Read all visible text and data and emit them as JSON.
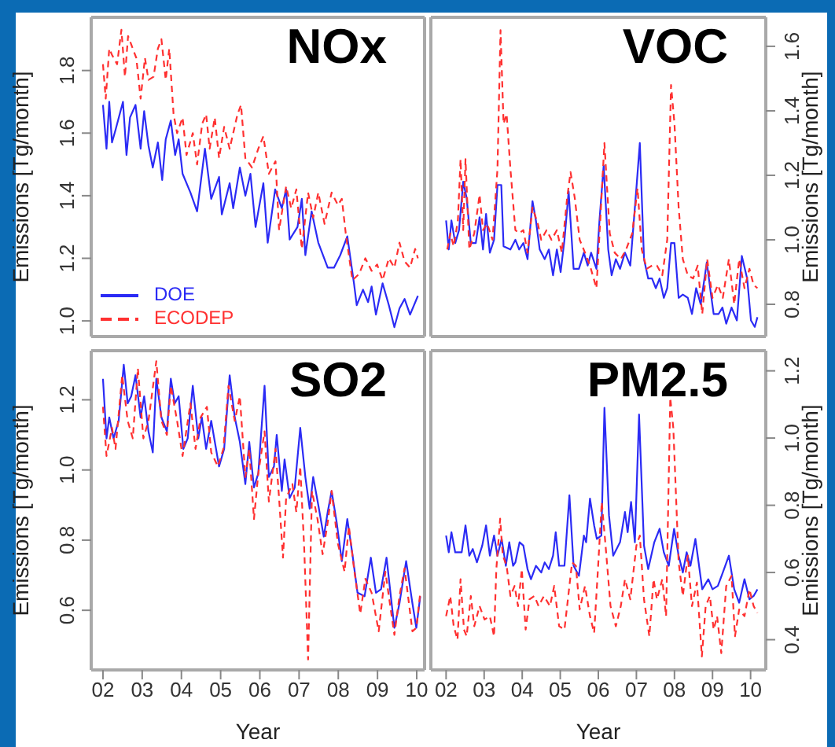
{
  "chart_data": [
    {
      "type": "line",
      "title": "NOx",
      "ylabel": "Emissions [Tg/month]",
      "xlim": [
        2001.7,
        2010.2
      ],
      "ylim": [
        0.95,
        1.97
      ],
      "yticks": [
        {
          "value": 1,
          "label": "1.0"
        },
        {
          "value": 1.2,
          "label": "1.2"
        },
        {
          "value": 1.4,
          "label": "1.4"
        },
        {
          "value": 1.6,
          "label": "1.6"
        },
        {
          "value": 1.8,
          "label": "1.8"
        }
      ],
      "tick_labels": "y",
      "legend": "bottom left",
      "series": [
        {
          "name": "DOE",
          "color": "#2b2bf5",
          "line_style": "solid",
          "x": [
            2002.0,
            2002.09,
            2002.16,
            2002.23,
            2002.32,
            2002.51,
            2002.6,
            2002.69,
            2002.83,
            2002.96,
            2003.05,
            2003.16,
            2003.27,
            2003.4,
            2003.51,
            2003.6,
            2003.73,
            2003.84,
            2003.93,
            2004.03,
            2004.23,
            2004.4,
            2004.6,
            2004.76,
            2004.96,
            2005.03,
            2005.23,
            2005.32,
            2005.49,
            2005.63,
            2005.76,
            2005.89,
            2006.09,
            2006.2,
            2006.39,
            2006.56,
            2006.67,
            2006.76,
            2006.96,
            2007.07,
            2007.16,
            2007.32,
            2007.49,
            2007.73,
            2007.89,
            2008.05,
            2008.23,
            2008.4,
            2008.47,
            2008.63,
            2008.76,
            2008.85,
            2008.96,
            2009.13,
            2009.29,
            2009.43,
            2009.56,
            2009.69,
            2009.83,
            2010.03
          ],
          "values": [
            1.69,
            1.55,
            1.7,
            1.57,
            1.61,
            1.7,
            1.53,
            1.65,
            1.69,
            1.55,
            1.67,
            1.56,
            1.49,
            1.57,
            1.45,
            1.58,
            1.64,
            1.53,
            1.58,
            1.47,
            1.41,
            1.35,
            1.55,
            1.39,
            1.46,
            1.34,
            1.44,
            1.36,
            1.49,
            1.4,
            1.47,
            1.3,
            1.44,
            1.25,
            1.42,
            1.36,
            1.42,
            1.26,
            1.3,
            1.39,
            1.21,
            1.35,
            1.25,
            1.17,
            1.17,
            1.21,
            1.27,
            1.12,
            1.05,
            1.1,
            1.06,
            1.11,
            1.02,
            1.12,
            1.05,
            0.98,
            1.04,
            1.07,
            1.02,
            1.08
          ]
        },
        {
          "name": "ECODEP",
          "color": "#ff3030",
          "line_style": "dashed",
          "x": [
            2002.0,
            2002.07,
            2002.16,
            2002.23,
            2002.36,
            2002.47,
            2002.56,
            2002.64,
            2002.76,
            2002.85,
            2002.96,
            2003.07,
            2003.16,
            2003.29,
            2003.4,
            2003.49,
            2003.6,
            2003.69,
            2003.8,
            2003.89,
            2004.03,
            2004.13,
            2004.29,
            2004.4,
            2004.53,
            2004.63,
            2004.72,
            2004.85,
            2004.96,
            2005.09,
            2005.23,
            2005.43,
            2005.52,
            2005.63,
            2005.8,
            2005.96,
            2006.09,
            2006.23,
            2006.4,
            2006.49,
            2006.67,
            2006.8,
            2006.93,
            2007.07,
            2007.23,
            2007.36,
            2007.49,
            2007.65,
            2007.83,
            2007.99,
            2008.09,
            2008.19,
            2008.36,
            2008.53,
            2008.69,
            2008.85,
            2008.99,
            2009.13,
            2009.29,
            2009.43,
            2009.56,
            2009.69,
            2009.83,
            2009.96,
            2010.03
          ],
          "values": [
            1.82,
            1.71,
            1.87,
            1.85,
            1.82,
            1.93,
            1.78,
            1.91,
            1.87,
            1.84,
            1.71,
            1.84,
            1.77,
            1.78,
            1.87,
            1.9,
            1.77,
            1.87,
            1.66,
            1.6,
            1.65,
            1.53,
            1.6,
            1.5,
            1.63,
            1.66,
            1.55,
            1.65,
            1.52,
            1.62,
            1.55,
            1.66,
            1.69,
            1.52,
            1.49,
            1.55,
            1.59,
            1.47,
            1.51,
            1.29,
            1.43,
            1.36,
            1.42,
            1.23,
            1.41,
            1.33,
            1.41,
            1.31,
            1.41,
            1.37,
            1.39,
            1.28,
            1.13,
            1.15,
            1.2,
            1.16,
            1.18,
            1.13,
            1.2,
            1.17,
            1.25,
            1.19,
            1.17,
            1.23,
            1.2
          ]
        }
      ]
    },
    {
      "type": "line",
      "title": "VOC",
      "y2label": "Emissions [Tg/month]",
      "xlim": [
        2001.6,
        2010.4
      ],
      "y2lim": [
        0.7,
        1.69
      ],
      "y2ticks": [
        {
          "value": 0.8,
          "label": "0.8"
        },
        {
          "value": 1,
          "label": "1.0"
        },
        {
          "value": 1.2,
          "label": "1.2"
        },
        {
          "value": 1.4,
          "label": "1.4"
        },
        {
          "value": 1.6,
          "label": "1.6"
        }
      ],
      "tick_labels": "y",
      "series": [
        {
          "color": "#2b2bf5",
          "line_style": "solid",
          "axis": "y2",
          "x": [
            2002.0,
            2002.07,
            2002.14,
            2002.24,
            2002.34,
            2002.45,
            2002.54,
            2002.65,
            2002.78,
            2002.88,
            2002.97,
            2003.05,
            2003.15,
            2003.26,
            2003.35,
            2003.45,
            2003.51,
            2003.69,
            2003.82,
            2003.92,
            2004.03,
            2004.14,
            2004.27,
            2004.36,
            2004.46,
            2004.59,
            2004.7,
            2004.81,
            2004.91,
            2005.01,
            2005.11,
            2005.22,
            2005.35,
            2005.49,
            2005.62,
            2005.72,
            2005.81,
            2005.95,
            2006.03,
            2006.14,
            2006.26,
            2006.35,
            2006.46,
            2006.57,
            2006.7,
            2006.84,
            2007.0,
            2007.09,
            2007.2,
            2007.31,
            2007.41,
            2007.51,
            2007.61,
            2007.72,
            2007.81,
            2007.91,
            2008.0,
            2008.11,
            2008.22,
            2008.35,
            2008.46,
            2008.57,
            2008.69,
            2008.85,
            2008.96,
            2009.03,
            2009.16,
            2009.26,
            2009.36,
            2009.5,
            2009.64,
            2009.77,
            2009.91,
            2010.01,
            2010.11,
            2010.18
          ],
          "values": [
            1.06,
            0.97,
            1.06,
            0.99,
            1.03,
            1.18,
            1.13,
            0.99,
            0.99,
            1.07,
            0.97,
            1.08,
            0.96,
            1.0,
            1.17,
            1.17,
            0.98,
            0.97,
            1.0,
            0.97,
            0.99,
            0.94,
            1.12,
            1.06,
            0.97,
            0.94,
            0.97,
            0.89,
            0.97,
            0.9,
            1.0,
            1.15,
            0.91,
            0.91,
            0.96,
            0.92,
            0.96,
            0.91,
            1.06,
            1.23,
            0.97,
            0.89,
            0.94,
            0.91,
            0.96,
            0.92,
            1.16,
            1.3,
            0.94,
            0.88,
            0.88,
            0.85,
            0.88,
            0.82,
            0.85,
            0.99,
            0.99,
            0.82,
            0.83,
            0.82,
            0.77,
            0.85,
            0.8,
            0.93,
            0.83,
            0.77,
            0.77,
            0.79,
            0.74,
            0.79,
            0.75,
            0.95,
            0.88,
            0.75,
            0.73,
            0.76
          ]
        },
        {
          "color": "#ff3030",
          "line_style": "dashed",
          "axis": "y2",
          "x": [
            2002.03,
            2002.11,
            2002.2,
            2002.31,
            2002.38,
            2002.45,
            2002.51,
            2002.61,
            2002.74,
            2002.88,
            2002.97,
            2003.08,
            2003.22,
            2003.35,
            2003.43,
            2003.51,
            2003.59,
            2003.69,
            2003.82,
            2003.92,
            2004.03,
            2004.14,
            2004.27,
            2004.41,
            2004.5,
            2004.64,
            2004.77,
            2004.91,
            2005.04,
            2005.18,
            2005.27,
            2005.38,
            2005.51,
            2005.65,
            2005.78,
            2005.95,
            2006.05,
            2006.16,
            2006.3,
            2006.43,
            2006.59,
            2006.73,
            2006.89,
            2007.03,
            2007.14,
            2007.27,
            2007.41,
            2007.54,
            2007.68,
            2007.81,
            2007.91,
            2008.0,
            2008.11,
            2008.22,
            2008.35,
            2008.49,
            2008.61,
            2008.73,
            2008.86,
            2009.0,
            2009.14,
            2009.27,
            2009.43,
            2009.57,
            2009.7,
            2009.84,
            2009.97,
            2010.08,
            2010.18
          ],
          "values": [
            0.97,
            1.02,
            0.98,
            1.06,
            1.25,
            1.03,
            1.25,
            0.97,
            1.02,
            1.14,
            1.03,
            1.05,
            1.0,
            1.22,
            1.65,
            1.36,
            1.39,
            1.22,
            1.03,
            1.02,
            1.03,
            0.96,
            1.1,
            1.05,
            1.0,
            1.03,
            1.0,
            1.03,
            0.96,
            1.13,
            1.21,
            1.13,
            1.0,
            0.96,
            0.92,
            0.85,
            1.06,
            1.3,
            1.02,
            0.96,
            0.94,
            0.97,
            1.02,
            1.16,
            0.97,
            0.91,
            0.92,
            0.92,
            0.89,
            1.0,
            1.48,
            1.36,
            1.1,
            0.94,
            0.89,
            0.88,
            0.92,
            0.77,
            0.94,
            0.82,
            0.86,
            0.82,
            0.94,
            0.8,
            0.94,
            0.85,
            0.91,
            0.86,
            0.85
          ]
        }
      ]
    },
    {
      "type": "line",
      "title": "SO2",
      "xlabel": "Year",
      "ylabel": "Emissions [Tg/month]",
      "xlim": [
        2001.7,
        2010.2
      ],
      "xticks": [
        {
          "value": 2002,
          "label": "02"
        },
        {
          "value": 2003,
          "label": "03"
        },
        {
          "value": 2004,
          "label": "04"
        },
        {
          "value": 2005,
          "label": "05"
        },
        {
          "value": 2006,
          "label": "06"
        },
        {
          "value": 2007,
          "label": "07"
        },
        {
          "value": 2008,
          "label": "08"
        },
        {
          "value": 2009,
          "label": "09"
        },
        {
          "value": 2010,
          "label": "10"
        }
      ],
      "ylim": [
        0.43,
        1.34
      ],
      "yticks": [
        {
          "value": 0.6,
          "label": "0.6"
        },
        {
          "value": 0.8,
          "label": "0.8"
        },
        {
          "value": 1,
          "label": "1.0"
        },
        {
          "value": 1.2,
          "label": "1.2"
        }
      ],
      "series": [
        {
          "color": "#2b2bf5",
          "line_style": "solid",
          "x": [
            2002.0,
            2002.09,
            2002.16,
            2002.27,
            2002.4,
            2002.53,
            2002.63,
            2002.72,
            2002.83,
            2002.96,
            2003.05,
            2003.16,
            2003.27,
            2003.36,
            2003.49,
            2003.63,
            2003.73,
            2003.83,
            2003.93,
            2004.05,
            2004.16,
            2004.29,
            2004.43,
            2004.52,
            2004.63,
            2004.76,
            2004.96,
            2005.09,
            2005.23,
            2005.36,
            2005.49,
            2005.63,
            2005.73,
            2005.85,
            2005.96,
            2006.12,
            2006.23,
            2006.36,
            2006.43,
            2006.56,
            2006.63,
            2006.76,
            2006.89,
            2007.03,
            2007.16,
            2007.27,
            2007.36,
            2007.49,
            2007.63,
            2007.73,
            2007.83,
            2007.96,
            2008.09,
            2008.23,
            2008.36,
            2008.49,
            2008.67,
            2008.83,
            2008.96,
            2009.09,
            2009.23,
            2009.43,
            2009.56,
            2009.73,
            2009.89,
            2009.99,
            2010.09
          ],
          "values": [
            1.26,
            1.09,
            1.15,
            1.09,
            1.14,
            1.3,
            1.19,
            1.21,
            1.27,
            1.15,
            1.21,
            1.11,
            1.05,
            1.26,
            1.15,
            1.11,
            1.26,
            1.19,
            1.21,
            1.06,
            1.09,
            1.24,
            1.09,
            1.15,
            1.06,
            1.14,
            1.01,
            1.06,
            1.27,
            1.15,
            1.08,
            0.96,
            1.08,
            0.95,
            0.99,
            1.24,
            0.98,
            1.01,
            1.1,
            0.94,
            1.03,
            0.92,
            0.95,
            1.12,
            0.98,
            0.89,
            0.98,
            0.9,
            0.81,
            0.88,
            0.94,
            0.85,
            0.74,
            0.86,
            0.76,
            0.65,
            0.64,
            0.75,
            0.65,
            0.66,
            0.75,
            0.55,
            0.62,
            0.74,
            0.62,
            0.55,
            0.64
          ]
        },
        {
          "color": "#ff3030",
          "line_style": "dashed",
          "x": [
            2002.0,
            2002.09,
            2002.23,
            2002.32,
            2002.49,
            2002.63,
            2002.76,
            2002.89,
            2003.03,
            2003.16,
            2003.36,
            2003.49,
            2003.63,
            2003.73,
            2003.89,
            2004.03,
            2004.23,
            2004.36,
            2004.49,
            2004.65,
            2004.76,
            2004.93,
            2005.07,
            2005.2,
            2005.36,
            2005.49,
            2005.63,
            2005.73,
            2005.85,
            2005.96,
            2006.12,
            2006.23,
            2006.4,
            2006.49,
            2006.59,
            2006.67,
            2006.83,
            2006.93,
            2007.03,
            2007.13,
            2007.23,
            2007.33,
            2007.47,
            2007.6,
            2007.73,
            2007.83,
            2007.99,
            2008.16,
            2008.27,
            2008.4,
            2008.56,
            2008.69,
            2008.85,
            2009.03,
            2009.2,
            2009.43,
            2009.56,
            2009.69,
            2009.89,
            2009.99,
            2010.09
          ],
          "values": [
            1.18,
            1.04,
            1.12,
            1.06,
            1.27,
            1.14,
            1.09,
            1.29,
            1.09,
            1.14,
            1.31,
            1.14,
            1.1,
            1.24,
            1.14,
            1.04,
            1.19,
            1.06,
            1.15,
            1.18,
            1.05,
            1.01,
            1.06,
            1.24,
            1.14,
            1.21,
            0.98,
            1.06,
            0.86,
            0.99,
            1.11,
            0.91,
            1.06,
            0.92,
            0.75,
            0.92,
            0.96,
            0.88,
            1.01,
            0.78,
            0.46,
            0.94,
            0.86,
            0.76,
            0.85,
            0.94,
            0.79,
            0.71,
            0.84,
            0.72,
            0.59,
            0.69,
            0.65,
            0.54,
            0.71,
            0.53,
            0.64,
            0.72,
            0.54,
            0.55,
            0.65
          ]
        }
      ]
    },
    {
      "type": "line",
      "title": "PM2.5",
      "xlabel": "Year",
      "y2label": "Emissions [Tg/month]",
      "xlim": [
        2001.6,
        2010.4
      ],
      "xticks": [
        {
          "value": 2002,
          "label": "02"
        },
        {
          "value": 2003,
          "label": "03"
        },
        {
          "value": 2004,
          "label": "04"
        },
        {
          "value": 2005,
          "label": "05"
        },
        {
          "value": 2006,
          "label": "06"
        },
        {
          "value": 2007,
          "label": "07"
        },
        {
          "value": 2008,
          "label": "08"
        },
        {
          "value": 2009,
          "label": "09"
        },
        {
          "value": 2010,
          "label": "10"
        }
      ],
      "y2lim": [
        0.31,
        1.26
      ],
      "y2ticks": [
        {
          "value": 0.4,
          "label": "0.4"
        },
        {
          "value": 0.6,
          "label": "0.6"
        },
        {
          "value": 0.8,
          "label": "0.8"
        },
        {
          "value": 1,
          "label": "1.0"
        },
        {
          "value": 1.2,
          "label": "1.2"
        }
      ],
      "series": [
        {
          "color": "#2b2bf5",
          "line_style": "solid",
          "axis": "y2",
          "x": [
            2002.0,
            2002.07,
            2002.14,
            2002.24,
            2002.41,
            2002.51,
            2002.61,
            2002.7,
            2002.81,
            2002.95,
            2003.05,
            2003.15,
            2003.26,
            2003.35,
            2003.46,
            2003.57,
            2003.66,
            2003.76,
            2003.82,
            2003.93,
            2004.03,
            2004.14,
            2004.23,
            2004.36,
            2004.5,
            2004.59,
            2004.7,
            2004.81,
            2004.88,
            2004.97,
            2005.11,
            2005.24,
            2005.35,
            2005.49,
            2005.62,
            2005.68,
            2005.78,
            2005.89,
            2005.96,
            2006.08,
            2006.16,
            2006.28,
            2006.39,
            2006.57,
            2006.7,
            2006.77,
            2006.86,
            2006.96,
            2007.07,
            2007.2,
            2007.31,
            2007.47,
            2007.61,
            2007.72,
            2007.85,
            2007.99,
            2008.11,
            2008.22,
            2008.32,
            2008.42,
            2008.55,
            2008.73,
            2008.89,
            2009.0,
            2009.14,
            2009.27,
            2009.43,
            2009.57,
            2009.7,
            2009.84,
            2009.97,
            2010.08,
            2010.18
          ],
          "values": [
            0.71,
            0.66,
            0.72,
            0.66,
            0.66,
            0.74,
            0.65,
            0.67,
            0.63,
            0.68,
            0.74,
            0.65,
            0.71,
            0.65,
            0.7,
            0.62,
            0.69,
            0.62,
            0.63,
            0.69,
            0.68,
            0.61,
            0.58,
            0.62,
            0.6,
            0.63,
            0.61,
            0.65,
            0.72,
            0.62,
            0.62,
            0.83,
            0.62,
            0.59,
            0.71,
            0.69,
            0.82,
            0.74,
            0.7,
            0.71,
            1.09,
            0.77,
            0.65,
            0.69,
            0.78,
            0.72,
            0.81,
            0.69,
            1.07,
            0.68,
            0.61,
            0.69,
            0.73,
            0.66,
            0.62,
            0.73,
            0.65,
            0.6,
            0.66,
            0.62,
            0.7,
            0.55,
            0.58,
            0.55,
            0.56,
            0.6,
            0.65,
            0.55,
            0.51,
            0.58,
            0.52,
            0.53,
            0.55
          ]
        },
        {
          "color": "#ff3030",
          "line_style": "dashed",
          "axis": "y2",
          "x": [
            2002.0,
            2002.11,
            2002.2,
            2002.3,
            2002.38,
            2002.47,
            2002.54,
            2002.65,
            2002.74,
            2002.88,
            2003.01,
            2003.15,
            2003.26,
            2003.32,
            2003.42,
            2003.49,
            2003.59,
            2003.69,
            2003.8,
            2003.89,
            2003.99,
            2004.09,
            2004.19,
            2004.32,
            2004.43,
            2004.57,
            2004.73,
            2004.84,
            2004.97,
            2005.11,
            2005.24,
            2005.31,
            2005.41,
            2005.51,
            2005.65,
            2005.78,
            2005.89,
            2005.99,
            2006.09,
            2006.19,
            2006.32,
            2006.46,
            2006.59,
            2006.7,
            2006.84,
            2007.0,
            2007.09,
            2007.2,
            2007.34,
            2007.45,
            2007.54,
            2007.68,
            2007.78,
            2007.89,
            2007.97,
            2008.11,
            2008.22,
            2008.35,
            2008.46,
            2008.59,
            2008.72,
            2008.82,
            2008.93,
            2009.03,
            2009.12,
            2009.23,
            2009.36,
            2009.5,
            2009.59,
            2009.7,
            2009.84,
            2009.97,
            2010.08,
            2010.18
          ],
          "values": [
            0.47,
            0.53,
            0.44,
            0.4,
            0.58,
            0.43,
            0.41,
            0.53,
            0.44,
            0.5,
            0.46,
            0.47,
            0.41,
            0.61,
            0.76,
            0.65,
            0.62,
            0.53,
            0.56,
            0.5,
            0.61,
            0.43,
            0.52,
            0.53,
            0.5,
            0.53,
            0.5,
            0.56,
            0.44,
            0.43,
            0.56,
            0.63,
            0.62,
            0.49,
            0.56,
            0.47,
            0.42,
            0.61,
            0.81,
            0.68,
            0.5,
            0.44,
            0.5,
            0.58,
            0.52,
            0.68,
            0.71,
            0.52,
            0.41,
            0.58,
            0.52,
            0.58,
            0.47,
            1.12,
            1.03,
            0.63,
            0.53,
            0.65,
            0.5,
            0.57,
            0.35,
            0.5,
            0.53,
            0.43,
            0.47,
            0.36,
            0.56,
            0.59,
            0.41,
            0.49,
            0.47,
            0.55,
            0.5,
            0.48
          ]
        }
      ]
    }
  ]
}
